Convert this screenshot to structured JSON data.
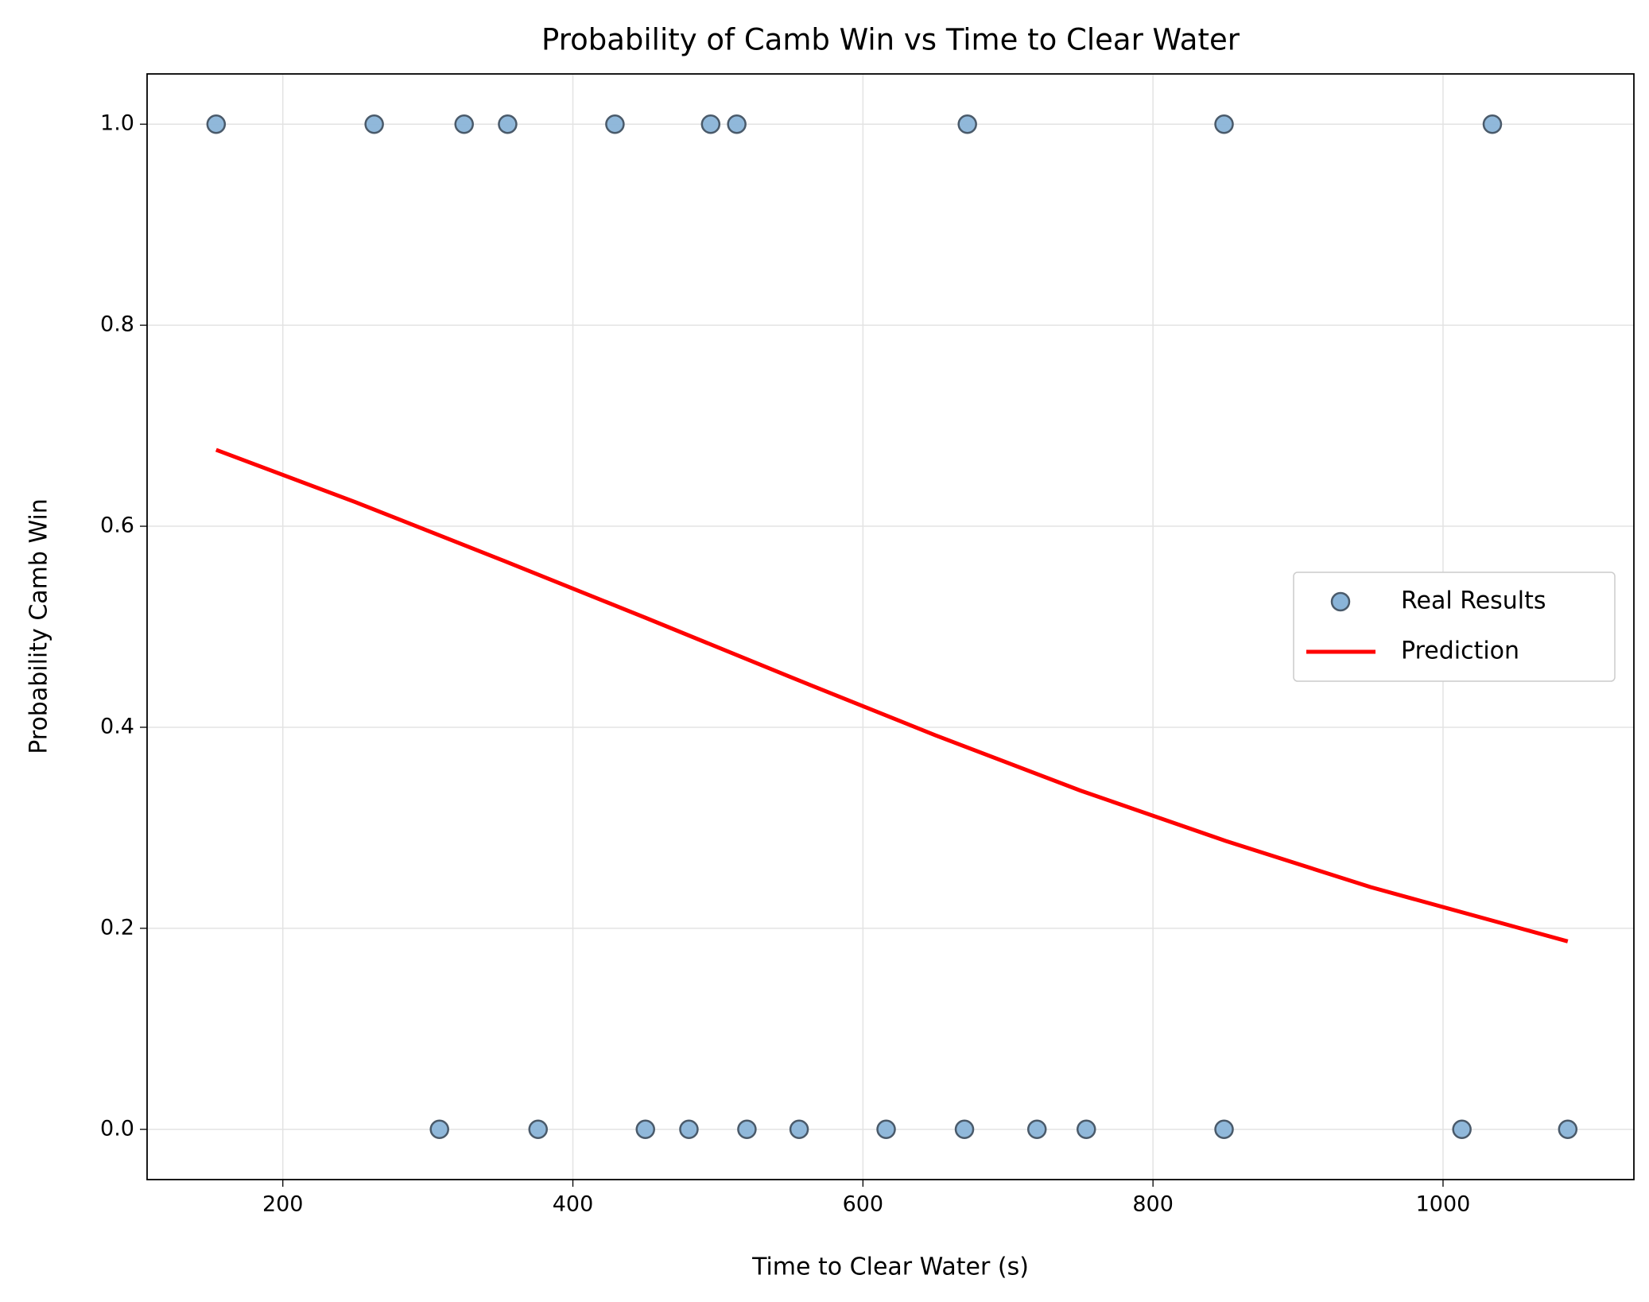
{
  "chart_data": {
    "type": "scatter",
    "title": "Probability of Camb Win vs Time to Clear Water",
    "xlabel": "Time to Clear Water (s)",
    "ylabel": "Probability Camb Win",
    "xlim": [
      106.4,
      1131.6
    ],
    "ylim": [
      -0.05,
      1.05
    ],
    "xticks": [
      200,
      400,
      600,
      800,
      1000
    ],
    "yticks": [
      {
        "value": 0,
        "label": "0.0"
      },
      {
        "value": 0.2,
        "label": "0.2"
      },
      {
        "value": 0.4,
        "label": "0.4"
      },
      {
        "value": 0.6,
        "label": "0.6"
      },
      {
        "value": 0.8,
        "label": "0.8"
      },
      {
        "value": 1,
        "label": "1.0"
      }
    ],
    "grid": true,
    "legend": "center right",
    "series": [
      {
        "name": "Real Results",
        "kind": "scatter",
        "color": "#8ab4d8",
        "x": [
          154,
          263,
          325,
          355,
          429,
          495,
          513,
          672,
          849,
          1034,
          308,
          376,
          450,
          480,
          520,
          556,
          616,
          670,
          720,
          754,
          849,
          1013,
          1086
        ],
        "values": [
          1,
          1,
          1,
          1,
          1,
          1,
          1,
          1,
          1,
          1,
          0,
          0,
          0,
          0,
          0,
          0,
          0,
          0,
          0,
          0,
          0,
          0,
          0
        ]
      },
      {
        "name": "Prediction",
        "kind": "line",
        "color": "#ff0000",
        "x": [
          154,
          250,
          350,
          450,
          550,
          650,
          750,
          850,
          950,
          1086
        ],
        "values": [
          0.676,
          0.624,
          0.567,
          0.509,
          0.45,
          0.392,
          0.337,
          0.287,
          0.241,
          0.187
        ]
      }
    ]
  }
}
